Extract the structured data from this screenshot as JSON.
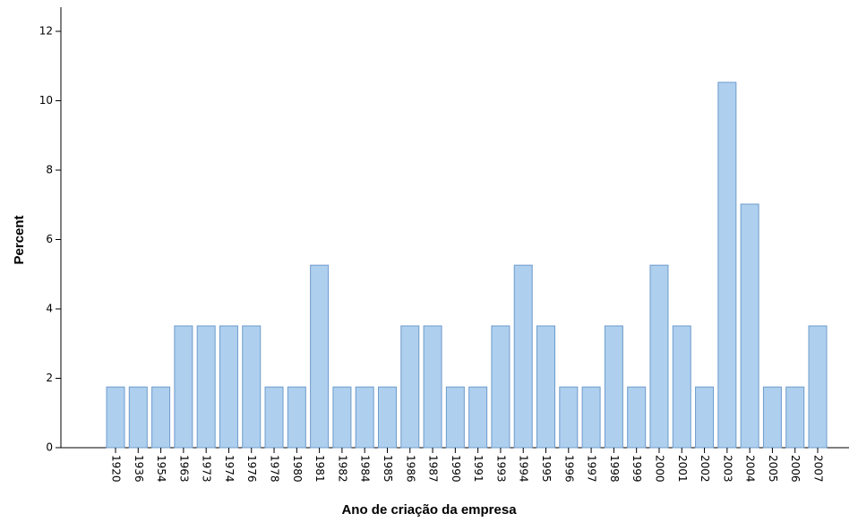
{
  "chart_data": {
    "type": "bar",
    "x_label": "Ano de criação da empresa",
    "y_label": "Percent",
    "categories": [
      "1920",
      "1936",
      "1954",
      "1963",
      "1973",
      "1974",
      "1976",
      "1978",
      "1980",
      "1981",
      "1982",
      "1984",
      "1985",
      "1986",
      "1987",
      "1990",
      "1991",
      "1993",
      "1994",
      "1995",
      "1996",
      "1997",
      "1998",
      "1999",
      "2000",
      "2001",
      "2002",
      "2003",
      "2004",
      "2005",
      "2006",
      "2007"
    ],
    "values": [
      1.75,
      1.75,
      1.75,
      3.51,
      3.51,
      3.51,
      3.51,
      1.75,
      1.75,
      5.26,
      1.75,
      1.75,
      1.75,
      3.51,
      3.51,
      1.75,
      1.75,
      3.51,
      5.26,
      3.51,
      1.75,
      1.75,
      3.51,
      1.75,
      5.26,
      3.51,
      1.75,
      10.53,
      7.02,
      1.75,
      1.75,
      3.51
    ],
    "color": "#aecfee",
    "ylim": [
      0,
      12
    ],
    "yticks": [
      0,
      2,
      4,
      6,
      8,
      10,
      12
    ],
    "grid": false
  }
}
